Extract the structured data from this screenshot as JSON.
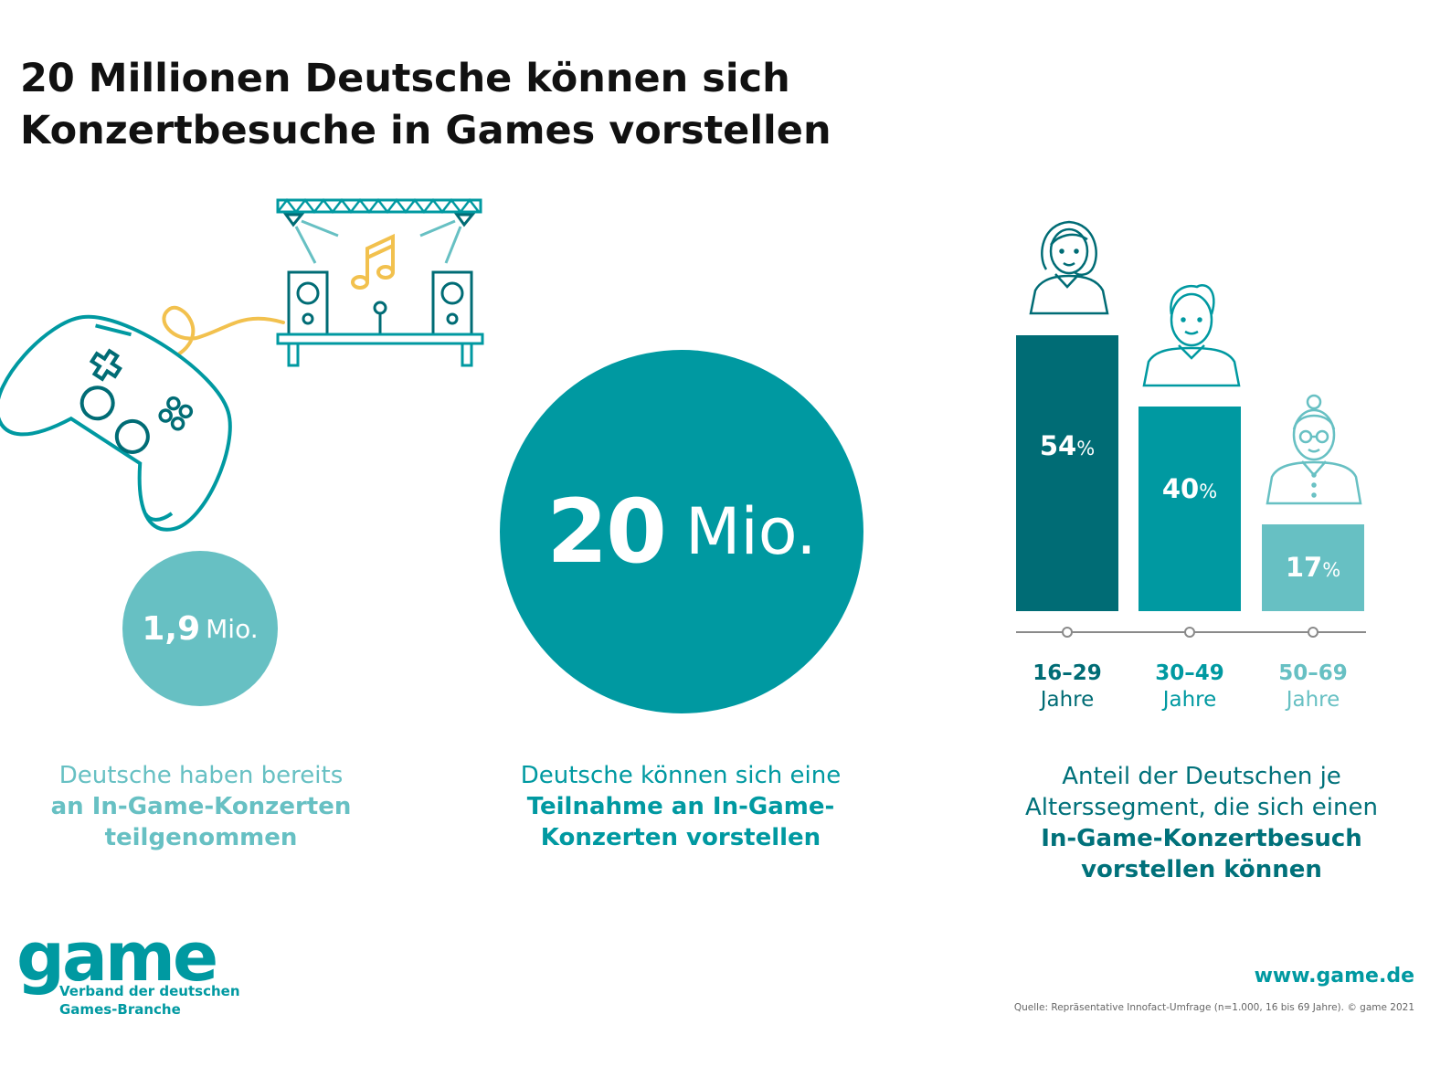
{
  "title_line1": "20 Millionen Deutsche können sich",
  "title_line2": "Konzertbesuche in Games vorstellen",
  "stat_small": {
    "value": "1,9",
    "unit": "Mio."
  },
  "stat_big": {
    "value": "20",
    "unit": "Mio."
  },
  "caption_left": {
    "line1": "Deutsche haben bereits",
    "bold1": "an In-Game-Konzerten",
    "bold2": "teilgenommen"
  },
  "caption_mid": {
    "line1": "Deutsche können sich eine",
    "bold1": "Teilnahme an In-Game-",
    "bold2": "Konzerten vorstellen"
  },
  "caption_right": {
    "line1": "Anteil der Deutschen je",
    "line2": "Alterssegment, die sich einen",
    "bold1": "In-Game-Konzertbesuch",
    "bold2": "vorstellen können"
  },
  "chart_data": {
    "type": "bar",
    "categories": [
      "16–29",
      "30–49",
      "50–69"
    ],
    "category_suffix": "Jahre",
    "values": [
      54,
      40,
      17
    ],
    "value_unit": "%",
    "ylim": [
      0,
      54
    ],
    "bar_colors": [
      "#006c75",
      "#0099a1",
      "#67c0c3"
    ],
    "icons": [
      "young-woman-icon",
      "man-icon",
      "elderly-woman-icon"
    ],
    "grid": false
  },
  "colors": {
    "dark_teal": "#006c75",
    "teal": "#0099a1",
    "light_teal": "#67c0c3",
    "yellow": "#f2c14e"
  },
  "icons": {
    "controller": "gamepad-icon",
    "stage": "concert-stage-icon",
    "music": "music-note-icon"
  },
  "logo": {
    "word": "game",
    "sub1": "Verband der deutschen",
    "sub2": "Games-Branche"
  },
  "website": "www.game.de",
  "source": "Quelle: Repräsentative Innofact-Umfrage (n=1.000, 16 bis 69 Jahre). © game 2021"
}
